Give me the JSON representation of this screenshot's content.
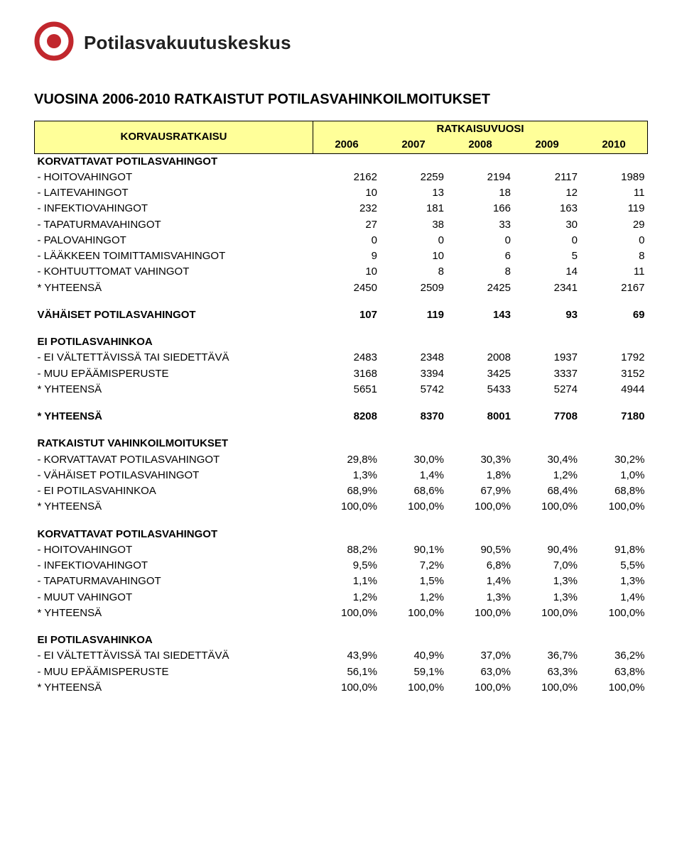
{
  "logo_text": "Potilasvakuutuskeskus",
  "title": "VUOSINA 2006-2010 RATKAISTUT POTILASVAHINKOILMOITUKSET",
  "header": {
    "left": "KORVAUSRATKAISU",
    "right": "RATKAISUVUOSI",
    "years": [
      "2006",
      "2007",
      "2008",
      "2009",
      "2010"
    ]
  },
  "sections": [
    {
      "title": "KORVATTAVAT POTILASVAHINGOT",
      "rows": [
        {
          "label": "- HOITOVAHINGOT",
          "v": [
            "2162",
            "2259",
            "2194",
            "2117",
            "1989"
          ]
        },
        {
          "label": "- LAITEVAHINGOT",
          "v": [
            "10",
            "13",
            "18",
            "12",
            "11"
          ]
        },
        {
          "label": "- INFEKTIOVAHINGOT",
          "v": [
            "232",
            "181",
            "166",
            "163",
            "119"
          ]
        },
        {
          "label": "- TAPATURMAVAHINGOT",
          "v": [
            "27",
            "38",
            "33",
            "30",
            "29"
          ]
        },
        {
          "label": "- PALOVAHINGOT",
          "v": [
            "0",
            "0",
            "0",
            "0",
            "0"
          ]
        },
        {
          "label": "- LÄÄKKEEN TOIMITTAMISVAHINGOT",
          "v": [
            "9",
            "10",
            "6",
            "5",
            "8"
          ]
        },
        {
          "label": "- KOHTUUTTOMAT VAHINGOT",
          "v": [
            "10",
            "8",
            "8",
            "14",
            "11"
          ]
        },
        {
          "label": "* YHTEENSÄ",
          "v": [
            "2450",
            "2509",
            "2425",
            "2341",
            "2167"
          ]
        }
      ]
    },
    {
      "title": "VÄHÄISET POTILASVAHINGOT",
      "title_values": [
        "107",
        "119",
        "143",
        "93",
        "69"
      ],
      "rows": []
    },
    {
      "title": "EI POTILASVAHINKOA",
      "rows": [
        {
          "label": "- EI VÄLTETTÄVISSÄ TAI SIEDETTÄVÄ",
          "v": [
            "2483",
            "2348",
            "2008",
            "1937",
            "1792"
          ]
        },
        {
          "label": "- MUU EPÄÄMISPERUSTE",
          "v": [
            "3168",
            "3394",
            "3425",
            "3337",
            "3152"
          ]
        },
        {
          "label": "* YHTEENSÄ",
          "v": [
            "5651",
            "5742",
            "5433",
            "5274",
            "4944"
          ]
        }
      ]
    },
    {
      "title": "* YHTEENSÄ",
      "title_values": [
        "8208",
        "8370",
        "8001",
        "7708",
        "7180"
      ],
      "rows": []
    },
    {
      "title": "RATKAISTUT VAHINKOILMOITUKSET",
      "rows": [
        {
          "label": "- KORVATTAVAT POTILASVAHINGOT",
          "v": [
            "29,8%",
            "30,0%",
            "30,3%",
            "30,4%",
            "30,2%"
          ]
        },
        {
          "label": "- VÄHÄISET POTILASVAHINGOT",
          "v": [
            "1,3%",
            "1,4%",
            "1,8%",
            "1,2%",
            "1,0%"
          ]
        },
        {
          "label": "- EI POTILASVAHINKOA",
          "v": [
            "68,9%",
            "68,6%",
            "67,9%",
            "68,4%",
            "68,8%"
          ]
        },
        {
          "label": "* YHTEENSÄ",
          "v": [
            "100,0%",
            "100,0%",
            "100,0%",
            "100,0%",
            "100,0%"
          ]
        }
      ]
    },
    {
      "title": "KORVATTAVAT POTILASVAHINGOT",
      "rows": [
        {
          "label": "- HOITOVAHINGOT",
          "v": [
            "88,2%",
            "90,1%",
            "90,5%",
            "90,4%",
            "91,8%"
          ]
        },
        {
          "label": "- INFEKTIOVAHINGOT",
          "v": [
            "9,5%",
            "7,2%",
            "6,8%",
            "7,0%",
            "5,5%"
          ]
        },
        {
          "label": "- TAPATURMAVAHINGOT",
          "v": [
            "1,1%",
            "1,5%",
            "1,4%",
            "1,3%",
            "1,3%"
          ]
        },
        {
          "label": "- MUUT VAHINGOT",
          "v": [
            "1,2%",
            "1,2%",
            "1,3%",
            "1,3%",
            "1,4%"
          ]
        },
        {
          "label": "* YHTEENSÄ",
          "v": [
            "100,0%",
            "100,0%",
            "100,0%",
            "100,0%",
            "100,0%"
          ]
        }
      ]
    },
    {
      "title": "EI POTILASVAHINKOA",
      "rows": [
        {
          "label": "- EI VÄLTETTÄVISSÄ TAI SIEDETTÄVÄ",
          "v": [
            "43,9%",
            "40,9%",
            "37,0%",
            "36,7%",
            "36,2%"
          ]
        },
        {
          "label": "- MUU EPÄÄMISPERUSTE",
          "v": [
            "56,1%",
            "59,1%",
            "63,0%",
            "63,3%",
            "63,8%"
          ]
        },
        {
          "label": "* YHTEENSÄ",
          "v": [
            "100,0%",
            "100,0%",
            "100,0%",
            "100,0%",
            "100,0%"
          ]
        }
      ]
    }
  ],
  "colors": {
    "header_bg": "#ffff99",
    "border": "#000000",
    "logo_red": "#c1272d",
    "text": "#000000"
  }
}
